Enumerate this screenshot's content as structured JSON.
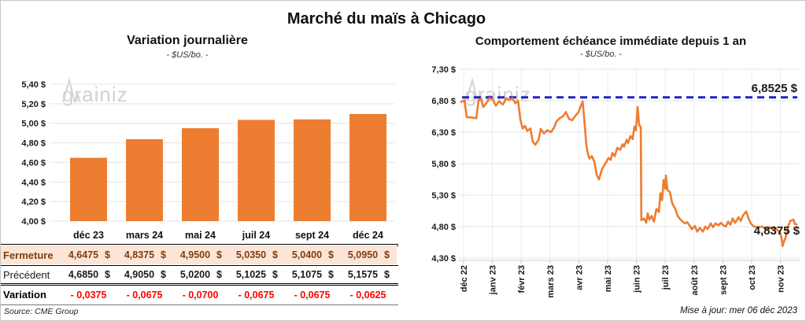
{
  "page": {
    "title": "Marché du maïs à Chicago",
    "source": "Source: CME Group",
    "updated": "Mise à jour: mer 06 déc 2023",
    "watermark": {
      "prefix": "grain",
      "suffix": "iz"
    }
  },
  "colors": {
    "bar_orange": "#ED7D31",
    "line_orange": "#ED7D31",
    "dashed_blue": "#2323C4",
    "variation_red": "#FF0000",
    "fermeture_brown": "#843C0C",
    "fermeture_bg": "#FBE5D6",
    "gridline": "#E4E4E4",
    "vertical_gridline": "#ECECEC",
    "axis": "#C9C9C9"
  },
  "chart_data": [
    {
      "type": "bar",
      "title": "Variation journalière",
      "subtitle": "- $US/bo. -",
      "categories": [
        "déc 23",
        "mars 24",
        "mai 24",
        "juil 24",
        "sept 24",
        "déc 24"
      ],
      "values": [
        4.6475,
        4.8375,
        4.95,
        5.035,
        5.04,
        5.095
      ],
      "ylim": [
        4.0,
        5.4
      ],
      "ytick_step": 0.2,
      "ytick_labels_top_to_bottom": [
        "5,40 $",
        "5,20 $",
        "5,00 $",
        "4,80 $",
        "4,60 $",
        "4,40 $",
        "4,20 $",
        "4,00 $"
      ],
      "grid": "horizontal only",
      "legend": "none"
    },
    {
      "type": "line",
      "title": "Comportement échéance immédiate depuis 1 an",
      "subtitle": "- $US/bo. -",
      "x_tick_labels": [
        "déc 22",
        "janv 23",
        "févr 23",
        "mars 23",
        "avr 23",
        "mai 23",
        "juin 23",
        "juil 23",
        "août 23",
        "sept 23",
        "oct 23",
        "nov 23"
      ],
      "x_unit": "months since déc 22 tick",
      "ylim": [
        4.3,
        7.3
      ],
      "ytick_labels_top_to_bottom": [
        "7,30 $",
        "6,80 $",
        "6,30 $",
        "5,80 $",
        "5,30 $",
        "4,80 $",
        "4,30 $"
      ],
      "grid": "horizontal and vertical",
      "legend": "none",
      "reference_line": {
        "value": 6.8525,
        "label": "6,8525 $",
        "style": "dashed"
      },
      "last_point_label": "4,8375 $",
      "last_point_value": 4.8375,
      "series": [
        {
          "name": "échéance immédiate",
          "points": [
            [
              -0.08,
              6.78
            ],
            [
              0.03,
              6.81
            ],
            [
              0.11,
              6.54
            ],
            [
              0.33,
              6.53
            ],
            [
              0.44,
              6.52
            ],
            [
              0.52,
              6.8
            ],
            [
              0.6,
              6.83
            ],
            [
              0.68,
              6.7
            ],
            [
              0.79,
              6.76
            ],
            [
              0.9,
              6.84
            ],
            [
              1.01,
              6.82
            ],
            [
              1.12,
              6.72
            ],
            [
              1.23,
              6.79
            ],
            [
              1.37,
              6.74
            ],
            [
              1.48,
              6.84
            ],
            [
              1.58,
              6.81
            ],
            [
              1.69,
              6.84
            ],
            [
              1.8,
              6.76
            ],
            [
              1.89,
              6.8
            ],
            [
              1.97,
              6.5
            ],
            [
              2.05,
              6.36
            ],
            [
              2.13,
              6.4
            ],
            [
              2.21,
              6.32
            ],
            [
              2.32,
              6.36
            ],
            [
              2.4,
              6.15
            ],
            [
              2.49,
              6.1
            ],
            [
              2.6,
              6.18
            ],
            [
              2.68,
              6.35
            ],
            [
              2.79,
              6.28
            ],
            [
              2.9,
              6.33
            ],
            [
              3.03,
              6.3
            ],
            [
              3.14,
              6.37
            ],
            [
              3.22,
              6.47
            ],
            [
              3.33,
              6.52
            ],
            [
              3.44,
              6.55
            ],
            [
              3.55,
              6.62
            ],
            [
              3.66,
              6.51
            ],
            [
              3.77,
              6.49
            ],
            [
              3.88,
              6.56
            ],
            [
              3.99,
              6.62
            ],
            [
              4.07,
              6.72
            ],
            [
              4.13,
              6.79
            ],
            [
              4.18,
              6.55
            ],
            [
              4.26,
              6.1
            ],
            [
              4.32,
              5.95
            ],
            [
              4.37,
              5.88
            ],
            [
              4.45,
              5.92
            ],
            [
              4.54,
              5.83
            ],
            [
              4.62,
              5.62
            ],
            [
              4.7,
              5.55
            ],
            [
              4.81,
              5.72
            ],
            [
              4.92,
              5.8
            ],
            [
              5.03,
              5.89
            ],
            [
              5.11,
              5.86
            ],
            [
              5.16,
              5.97
            ],
            [
              5.25,
              5.92
            ],
            [
              5.33,
              6.05
            ],
            [
              5.44,
              6.02
            ],
            [
              5.52,
              6.11
            ],
            [
              5.57,
              6.07
            ],
            [
              5.66,
              6.18
            ],
            [
              5.71,
              6.13
            ],
            [
              5.79,
              6.24
            ],
            [
              5.87,
              6.19
            ],
            [
              5.93,
              6.39
            ],
            [
              5.98,
              6.33
            ],
            [
              6.04,
              6.7
            ],
            [
              6.09,
              6.42
            ],
            [
              6.15,
              6.38
            ],
            [
              6.17,
              4.9
            ],
            [
              6.26,
              4.93
            ],
            [
              6.34,
              4.86
            ],
            [
              6.39,
              5.01
            ],
            [
              6.45,
              4.91
            ],
            [
              6.53,
              4.97
            ],
            [
              6.61,
              4.88
            ],
            [
              6.69,
              5.08
            ],
            [
              6.78,
              5.03
            ],
            [
              6.83,
              5.33
            ],
            [
              6.89,
              5.22
            ],
            [
              6.94,
              5.54
            ],
            [
              7.0,
              5.4
            ],
            [
              7.02,
              5.61
            ],
            [
              7.08,
              5.38
            ],
            [
              7.16,
              5.35
            ],
            [
              7.24,
              5.17
            ],
            [
              7.35,
              5.08
            ],
            [
              7.43,
              4.97
            ],
            [
              7.51,
              4.92
            ],
            [
              7.6,
              4.88
            ],
            [
              7.68,
              4.85
            ],
            [
              7.76,
              4.87
            ],
            [
              7.84,
              4.82
            ],
            [
              7.92,
              4.76
            ],
            [
              8.03,
              4.81
            ],
            [
              8.11,
              4.72
            ],
            [
              8.2,
              4.78
            ],
            [
              8.31,
              4.72
            ],
            [
              8.39,
              4.8
            ],
            [
              8.47,
              4.76
            ],
            [
              8.58,
              4.85
            ],
            [
              8.66,
              4.79
            ],
            [
              8.74,
              4.85
            ],
            [
              8.85,
              4.82
            ],
            [
              8.93,
              4.86
            ],
            [
              9.02,
              4.82
            ],
            [
              9.1,
              4.8
            ],
            [
              9.18,
              4.88
            ],
            [
              9.26,
              4.83
            ],
            [
              9.34,
              4.93
            ],
            [
              9.43,
              4.86
            ],
            [
              9.54,
              4.95
            ],
            [
              9.62,
              4.89
            ],
            [
              9.7,
              4.98
            ],
            [
              9.81,
              5.04
            ],
            [
              9.89,
              4.93
            ],
            [
              9.97,
              4.85
            ],
            [
              10.08,
              4.8
            ],
            [
              10.22,
              4.79
            ],
            [
              10.36,
              4.8
            ],
            [
              10.49,
              4.76
            ],
            [
              10.63,
              4.79
            ],
            [
              10.71,
              4.76
            ],
            [
              10.79,
              4.79
            ],
            [
              10.9,
              4.74
            ],
            [
              10.98,
              4.72
            ],
            [
              11.04,
              4.61
            ],
            [
              11.07,
              4.49
            ],
            [
              11.12,
              4.56
            ],
            [
              11.18,
              4.63
            ],
            [
              11.26,
              4.8
            ],
            [
              11.34,
              4.89
            ],
            [
              11.45,
              4.91
            ],
            [
              11.5,
              4.84
            ],
            [
              11.56,
              4.8375
            ]
          ]
        }
      ]
    }
  ],
  "table": {
    "columns": [
      "déc 23",
      "mars 24",
      "mai 24",
      "juil 24",
      "sept 24",
      "déc 24"
    ],
    "currency": "$",
    "rows": [
      {
        "label": "Fermeture",
        "values": [
          "4,6475",
          "4,8375",
          "4,9500",
          "5,0350",
          "5,0400",
          "5,0950"
        ],
        "unit": "$"
      },
      {
        "label": "Précédent",
        "values": [
          "4,6850",
          "4,9050",
          "5,0200",
          "5,1025",
          "5,1075",
          "5,1575"
        ],
        "unit": "$"
      },
      {
        "label": "Variation",
        "values": [
          "- 0,0375",
          "- 0,0675",
          "- 0,0700",
          "- 0,0675",
          "- 0,0675",
          "- 0,0625"
        ]
      }
    ]
  }
}
